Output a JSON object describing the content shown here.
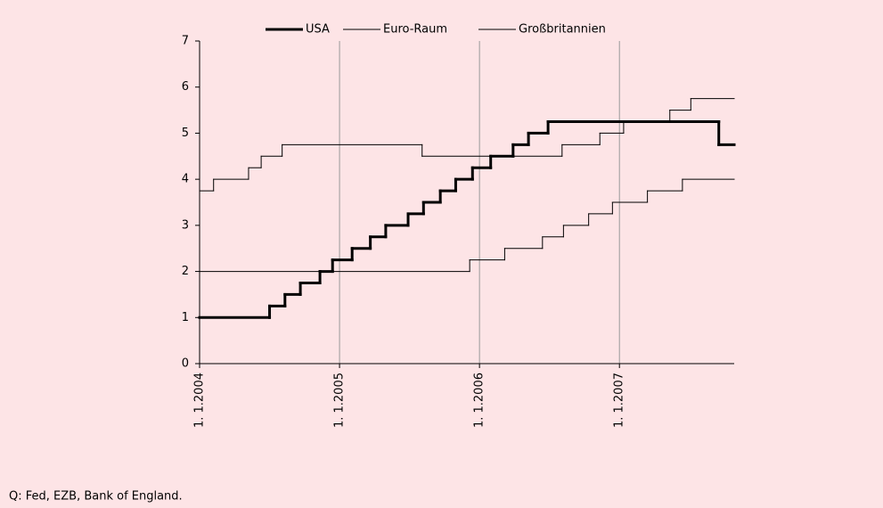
{
  "chart_data": {
    "type": "step",
    "series": [
      {
        "name": "USA",
        "color": "#000000",
        "width": 3,
        "x": [
          2004.0,
          2004.5,
          2004.61,
          2004.72,
          2004.86,
          2004.95,
          2005.09,
          2005.22,
          2005.33,
          2005.49,
          2005.6,
          2005.72,
          2005.83,
          2005.95,
          2006.08,
          2006.24,
          2006.35,
          2006.49,
          2007.71
        ],
        "values": [
          1.0,
          1.25,
          1.5,
          1.75,
          2.0,
          2.25,
          2.5,
          2.75,
          3.0,
          3.25,
          3.5,
          3.75,
          4.0,
          4.25,
          4.5,
          4.75,
          5.0,
          5.25,
          4.75
        ]
      },
      {
        "name": "Euro-Raum",
        "color": "#000000",
        "width": 1,
        "x": [
          2004.0,
          2005.93,
          2006.18,
          2006.45,
          2006.6,
          2006.78,
          2006.95,
          2007.2,
          2007.45
        ],
        "values": [
          2.0,
          2.25,
          2.5,
          2.75,
          3.0,
          3.25,
          3.5,
          3.75,
          4.0
        ]
      },
      {
        "name": "Großbritannien",
        "color": "#000000",
        "width": 1,
        "x": [
          2004.0,
          2004.1,
          2004.35,
          2004.44,
          2004.59,
          2005.59,
          2006.59,
          2006.86,
          2007.03,
          2007.36,
          2007.51
        ],
        "values": [
          3.75,
          4.0,
          4.25,
          4.5,
          4.75,
          4.5,
          4.75,
          5.0,
          5.25,
          5.5,
          5.75
        ]
      }
    ],
    "xlim": [
      2004.0,
      2007.82
    ],
    "xticks": [
      {
        "value": 2004,
        "label": "1. 1.2004"
      },
      {
        "value": 2005,
        "label": "1. 1.2005"
      },
      {
        "value": 2006,
        "label": "1. 1.2006"
      },
      {
        "value": 2007,
        "label": "1. 1.2007"
      }
    ],
    "ylim": [
      0,
      7
    ],
    "yticks": [
      0,
      1,
      2,
      3,
      4,
      5,
      6,
      7
    ],
    "grid": "x",
    "legend": "top",
    "source": "Q: Fed, EZB, Bank of England."
  }
}
